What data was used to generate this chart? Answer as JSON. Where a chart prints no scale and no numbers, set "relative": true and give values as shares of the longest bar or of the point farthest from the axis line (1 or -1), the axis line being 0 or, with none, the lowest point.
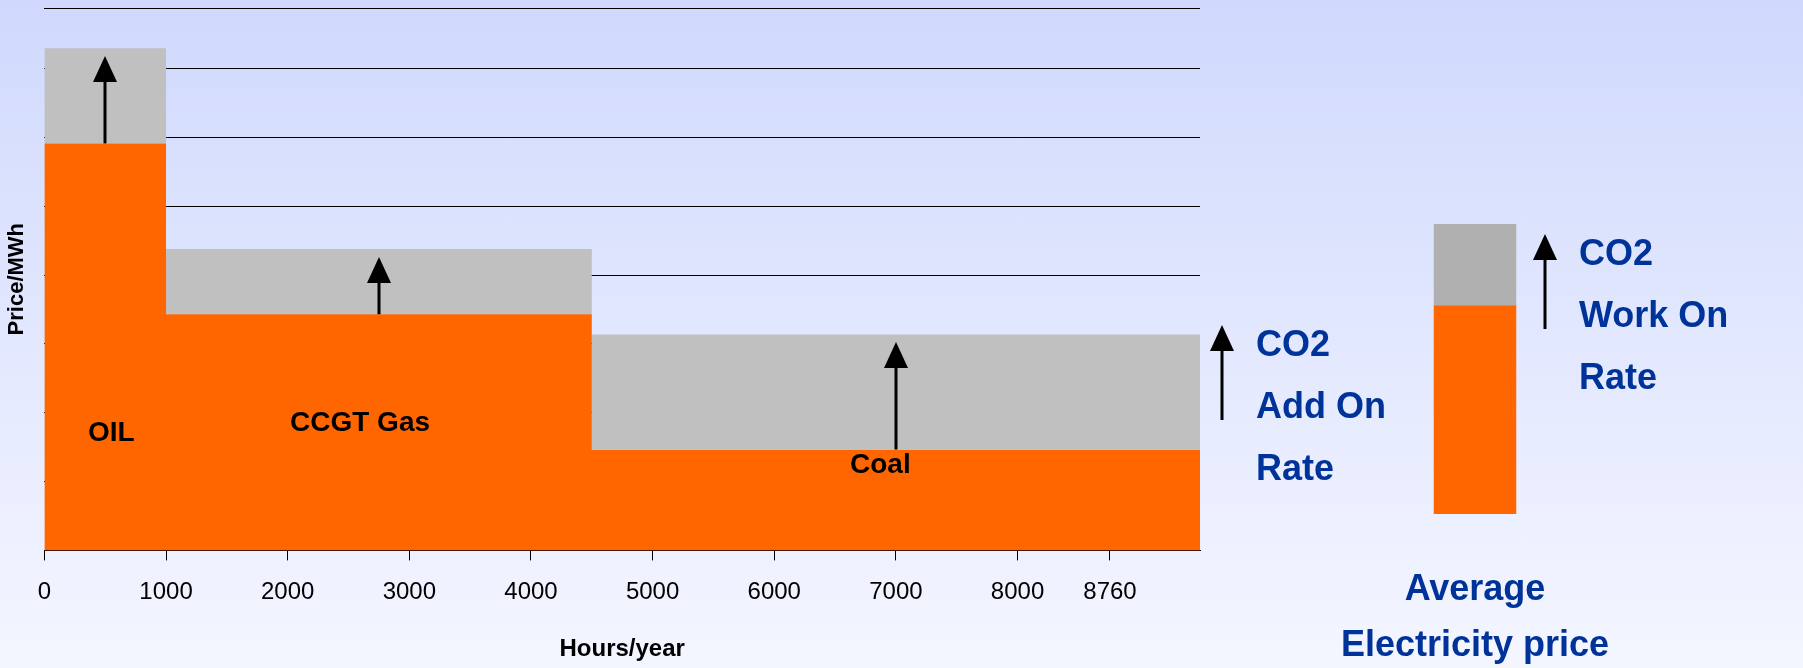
{
  "chart_data": [
    {
      "type": "area",
      "relative": true,
      "stacked": true,
      "xlabel": "Hours/year",
      "ylabel": "Price/MWh",
      "x": [
        0,
        1000,
        1000,
        4500,
        4500,
        9500
      ],
      "xlim": [
        0,
        9500
      ],
      "xticks": [
        0,
        1000,
        2000,
        3000,
        4000,
        5000,
        6000,
        7000,
        8000,
        8760
      ],
      "grid": "y",
      "series": [
        {
          "color": "#ff6600",
          "values": [
            0.81,
            0.81,
            0.47,
            0.47,
            0.2,
            0.2
          ]
        },
        {
          "color": "#c0c0c0",
          "values": [
            0.19,
            0.19,
            0.13,
            0.13,
            0.23,
            0.23
          ]
        }
      ],
      "annotations": [
        "OIL",
        "CCGT Gas",
        "Coal",
        "CO2 Add On Rate"
      ]
    },
    {
      "type": "bar",
      "relative": true,
      "stacked": true,
      "categories": [
        null
      ],
      "xlabel": "Average Electricity price",
      "series": [
        {
          "color": "#ff6600",
          "values": [
            0.72
          ]
        },
        {
          "color": "#b0b0b0",
          "values": [
            0.28
          ]
        }
      ],
      "annotations": [
        "CO2 Work On Rate"
      ]
    }
  ]
}
